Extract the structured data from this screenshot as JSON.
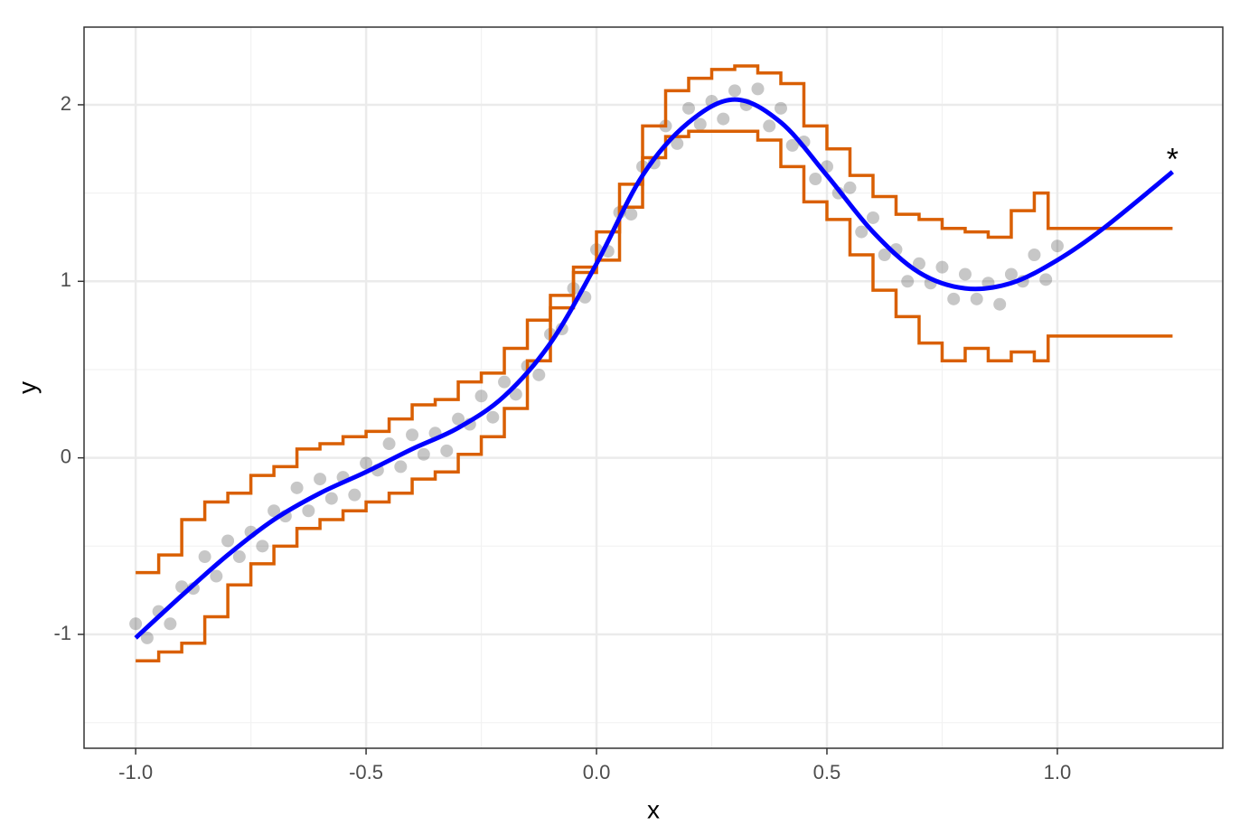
{
  "chart_data": {
    "type": "combo",
    "x_label": "x",
    "y_label": "y",
    "xlim": [
      -1.112,
      1.359
    ],
    "ylim": [
      -1.645,
      2.44
    ],
    "xticks": [
      {
        "value": -1,
        "label": "-1.0"
      },
      -0.5,
      {
        "value": 0,
        "label": "0.0"
      },
      0.5,
      {
        "value": 1,
        "label": "1.0"
      }
    ],
    "yticks": [
      -1,
      0,
      1,
      2
    ],
    "xminor": [
      -0.75,
      -0.25,
      0.25,
      0.75
    ],
    "yminor": [
      -1.5,
      -0.5,
      0.5,
      1.5
    ],
    "grid": true,
    "series": [
      {
        "kind": "points",
        "color": "#000000",
        "x": [
          -1,
          -0.975,
          -0.95,
          -0.925,
          -0.9,
          -0.875,
          -0.85,
          -0.825,
          -0.8,
          -0.775,
          -0.75,
          -0.725,
          -0.7,
          -0.675,
          -0.65,
          -0.625,
          -0.6,
          -0.575,
          -0.55,
          -0.525,
          -0.5,
          -0.475,
          -0.45,
          -0.425,
          -0.4,
          -0.375,
          -0.35,
          -0.325,
          -0.3,
          -0.275,
          -0.25,
          -0.225,
          -0.2,
          -0.175,
          -0.15,
          -0.125,
          -0.1,
          -0.075,
          -0.05,
          -0.025,
          0,
          0.025,
          0.05,
          0.075,
          0.1,
          0.125,
          0.15,
          0.175,
          0.2,
          0.225,
          0.25,
          0.275,
          0.3,
          0.325,
          0.35,
          0.375,
          0.4,
          0.425,
          0.45,
          0.475,
          0.5,
          0.525,
          0.55,
          0.575,
          0.6,
          0.625,
          0.65,
          0.675,
          0.7,
          0.725,
          0.75,
          0.775,
          0.8,
          0.825,
          0.85,
          0.875,
          0.9,
          0.925,
          0.95,
          0.975,
          1
        ],
        "values": [
          -0.94,
          -1.02,
          -0.87,
          -0.94,
          -0.73,
          -0.74,
          -0.56,
          -0.67,
          -0.47,
          -0.56,
          -0.42,
          -0.5,
          -0.3,
          -0.33,
          -0.17,
          -0.3,
          -0.12,
          -0.23,
          -0.11,
          -0.21,
          -0.03,
          -0.07,
          0.08,
          -0.05,
          0.13,
          0.02,
          0.14,
          0.04,
          0.22,
          0.19,
          0.35,
          0.23,
          0.43,
          0.36,
          0.52,
          0.47,
          0.7,
          0.73,
          0.96,
          0.91,
          1.18,
          1.17,
          1.39,
          1.38,
          1.65,
          1.67,
          1.88,
          1.78,
          1.98,
          1.89,
          2.02,
          1.92,
          2.08,
          2.0,
          2.09,
          1.88,
          1.98,
          1.77,
          1.79,
          1.58,
          1.65,
          1.5,
          1.53,
          1.28,
          1.36,
          1.15,
          1.18,
          1.0,
          1.1,
          0.99,
          1.08,
          0.9,
          1.04,
          0.9,
          0.99,
          0.87,
          1.04,
          1.0,
          1.15,
          1.01,
          1.2
        ]
      },
      {
        "kind": "step",
        "color": "#d95f02",
        "x": [
          -1,
          -0.95,
          -0.9,
          -0.85,
          -0.8,
          -0.75,
          -0.7,
          -0.65,
          -0.6,
          -0.55,
          -0.5,
          -0.45,
          -0.4,
          -0.35,
          -0.3,
          -0.25,
          -0.2,
          -0.15,
          -0.1,
          -0.05,
          0,
          0.05,
          0.1,
          0.15,
          0.2,
          0.25,
          0.3,
          0.35,
          0.4,
          0.45,
          0.5,
          0.55,
          0.6,
          0.65,
          0.7,
          0.75,
          0.8,
          0.85,
          0.9,
          0.95,
          0.98,
          1.25
        ],
        "values": [
          -0.65,
          -0.55,
          -0.35,
          -0.25,
          -0.2,
          -0.1,
          -0.05,
          0.05,
          0.08,
          0.12,
          0.15,
          0.22,
          0.3,
          0.33,
          0.43,
          0.48,
          0.62,
          0.78,
          0.92,
          1.08,
          1.28,
          1.55,
          1.88,
          2.08,
          2.15,
          2.2,
          2.22,
          2.18,
          2.12,
          1.88,
          1.75,
          1.6,
          1.48,
          1.38,
          1.35,
          1.3,
          1.28,
          1.25,
          1.4,
          1.5,
          1.3,
          1.3
        ]
      },
      {
        "kind": "step",
        "color": "#d95f02",
        "x": [
          -1,
          -0.95,
          -0.9,
          -0.85,
          -0.8,
          -0.75,
          -0.7,
          -0.65,
          -0.6,
          -0.55,
          -0.5,
          -0.45,
          -0.4,
          -0.35,
          -0.3,
          -0.25,
          -0.2,
          -0.15,
          -0.1,
          -0.05,
          0,
          0.05,
          0.1,
          0.15,
          0.2,
          0.25,
          0.3,
          0.35,
          0.4,
          0.45,
          0.5,
          0.55,
          0.6,
          0.65,
          0.7,
          0.75,
          0.8,
          0.85,
          0.9,
          0.95,
          0.98,
          1.25
        ],
        "values": [
          -1.15,
          -1.1,
          -1.05,
          -0.9,
          -0.72,
          -0.6,
          -0.5,
          -0.4,
          -0.35,
          -0.3,
          -0.25,
          -0.2,
          -0.12,
          -0.08,
          0.02,
          0.12,
          0.28,
          0.55,
          0.85,
          1.05,
          1.12,
          1.42,
          1.7,
          1.82,
          1.85,
          1.85,
          1.85,
          1.8,
          1.65,
          1.45,
          1.35,
          1.15,
          0.95,
          0.8,
          0.65,
          0.55,
          0.62,
          0.55,
          0.6,
          0.55,
          0.69,
          0.69
        ]
      },
      {
        "kind": "line",
        "color": "#0000ff",
        "x": [
          -1,
          -0.9,
          -0.8,
          -0.7,
          -0.6,
          -0.5,
          -0.4,
          -0.3,
          -0.2,
          -0.1,
          0,
          0.1,
          0.2,
          0.3,
          0.4,
          0.5,
          0.6,
          0.7,
          0.8,
          0.9,
          1.0,
          1.1,
          1.25
        ],
        "values": [
          -1.02,
          -0.78,
          -0.55,
          -0.35,
          -0.2,
          -0.08,
          0.05,
          0.17,
          0.35,
          0.65,
          1.1,
          1.6,
          1.9,
          2.03,
          1.9,
          1.6,
          1.28,
          1.05,
          0.96,
          0.99,
          1.12,
          1.3,
          1.62
        ]
      }
    ],
    "annotations": [
      {
        "text": "*",
        "x": 1.25,
        "y": 1.68
      }
    ]
  }
}
